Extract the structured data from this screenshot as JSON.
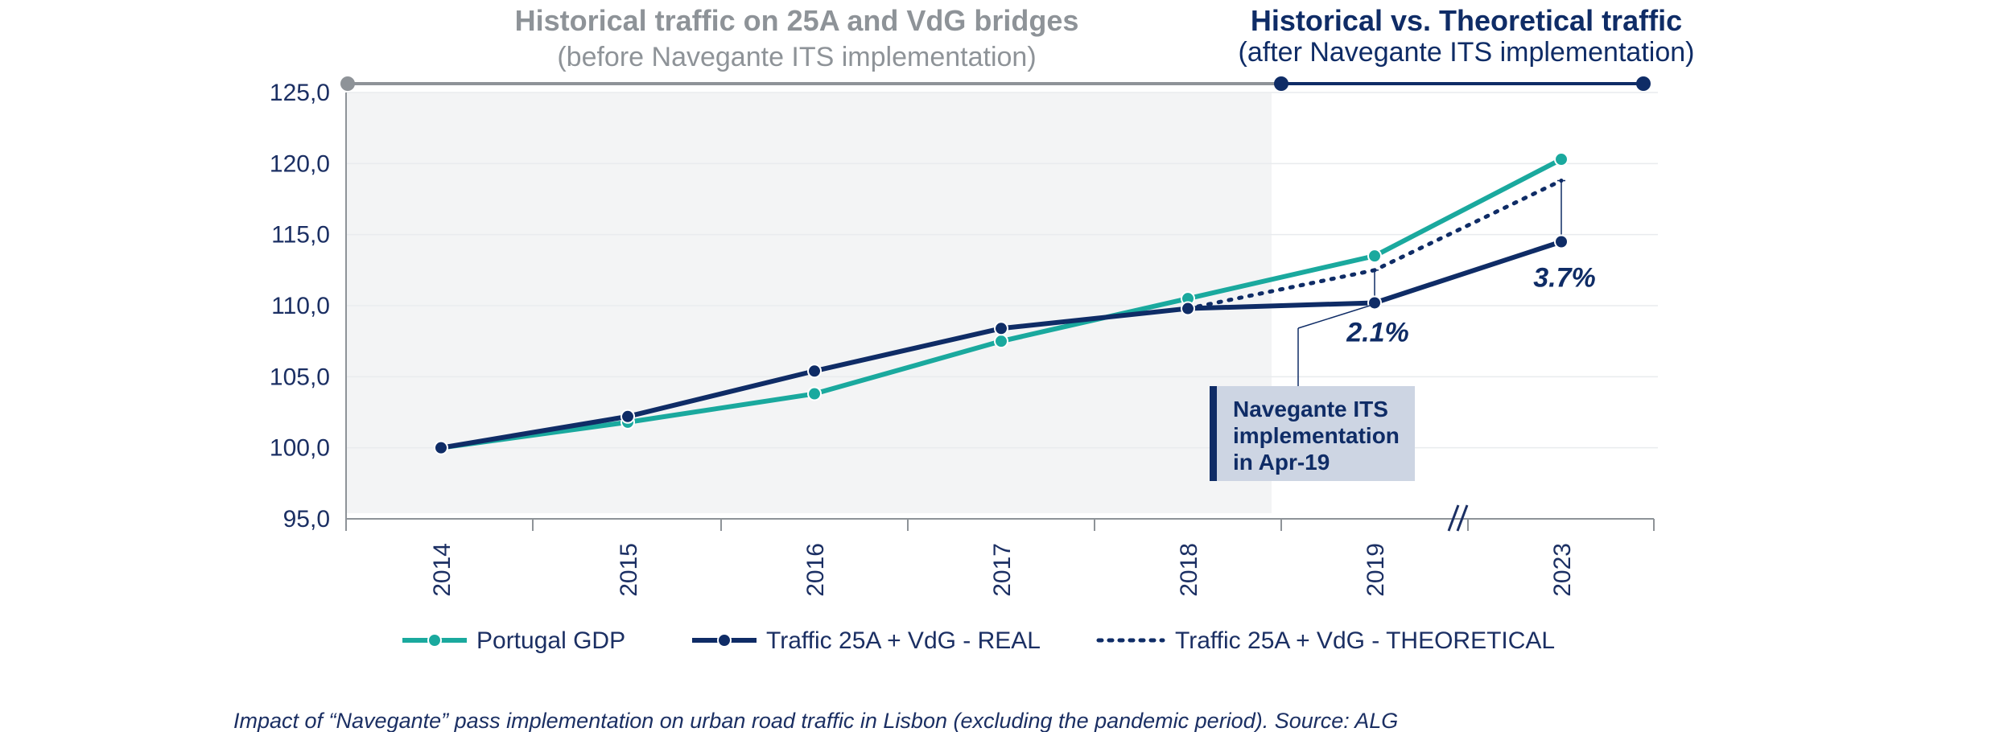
{
  "header": {
    "left_title": "Historical traffic on 25A and VdG bridges",
    "left_subtitle": "(before Navegante ITS implementation)",
    "right_title": "Historical vs. Theoretical traffic",
    "right_subtitle": "(after Navegante ITS implementation)"
  },
  "chart_data": {
    "type": "line",
    "categories": [
      "2014",
      "2015",
      "2016",
      "2017",
      "2018",
      "2019",
      "2023"
    ],
    "y_ticks": [
      "125,0",
      "120,0",
      "115,0",
      "110,0",
      "105,0",
      "100,0",
      "95,0"
    ],
    "ylim": [
      95,
      125
    ],
    "grid": true,
    "legend_position": "bottom",
    "series": [
      {
        "name": "Portugal GDP",
        "values": [
          100.0,
          101.8,
          103.8,
          107.5,
          110.5,
          113.5,
          120.3
        ],
        "color": "#1aa99e",
        "style": "solid"
      },
      {
        "name": "Traffic 25A + VdG - REAL",
        "values": [
          100.0,
          102.2,
          105.4,
          108.4,
          109.8,
          110.2,
          114.5
        ],
        "color": "#0f2c66",
        "style": "solid"
      },
      {
        "name": "Traffic 25A + VdG - THEORETICAL",
        "values": [
          null,
          null,
          null,
          null,
          109.8,
          112.5,
          118.8
        ],
        "color": "#0f2c66",
        "style": "dotted"
      }
    ],
    "annotations": [
      {
        "text": "2.1%",
        "category": "2019"
      },
      {
        "text": "3.7%",
        "category": "2023"
      }
    ],
    "note": [
      "Navegante ITS",
      "implementation",
      "in Apr-19"
    ]
  },
  "caption": "Impact of “Navegante” pass implementation on urban road traffic in Lisbon (excluding the pandemic period). Source: ALG",
  "colors": {
    "gdp": "#1aa99e",
    "traffic": "#0f2c66",
    "shade": "#f3f4f5",
    "grey": "#8e9398",
    "note_bg": "#cdd5e3"
  }
}
